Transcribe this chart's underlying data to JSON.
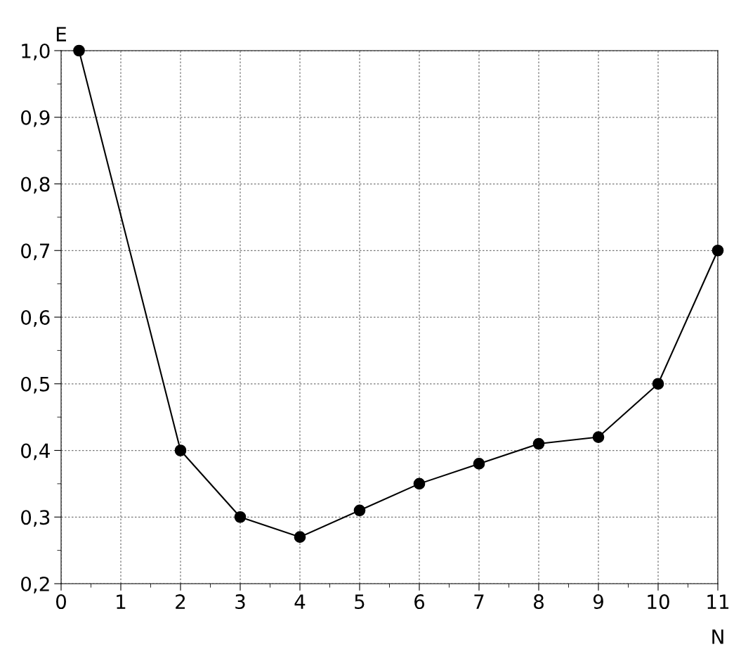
{
  "chart_data": {
    "type": "line",
    "xlabel": "N",
    "ylabel": "E",
    "x": [
      0.3,
      2,
      3,
      4,
      5,
      6,
      7,
      8,
      9,
      10,
      11
    ],
    "series": [
      {
        "color": "#000000",
        "values": [
          1.0,
          0.4,
          0.3,
          0.27,
          0.31,
          0.35,
          0.38,
          0.41,
          0.42,
          0.5,
          0.7
        ]
      }
    ],
    "xlim": [
      0,
      11
    ],
    "ylim": [
      0.2,
      1.0
    ],
    "xticks": [
      0,
      1,
      2,
      3,
      4,
      5,
      6,
      7,
      8,
      9,
      10,
      11
    ],
    "yticks": [
      {
        "value": 0.2,
        "label": "0,2"
      },
      {
        "value": 0.3,
        "label": "0,3"
      },
      {
        "value": 0.4,
        "label": "0,4"
      },
      {
        "value": 0.5,
        "label": "0,5"
      },
      {
        "value": 0.6,
        "label": "0,6"
      },
      {
        "value": 0.7,
        "label": "0,7"
      },
      {
        "value": 0.8,
        "label": "0,8"
      },
      {
        "value": 0.9,
        "label": "0,9"
      },
      {
        "value": 1.0,
        "label": "1,0"
      }
    ],
    "grid": true,
    "marker": "circle",
    "line_style": "solid"
  }
}
